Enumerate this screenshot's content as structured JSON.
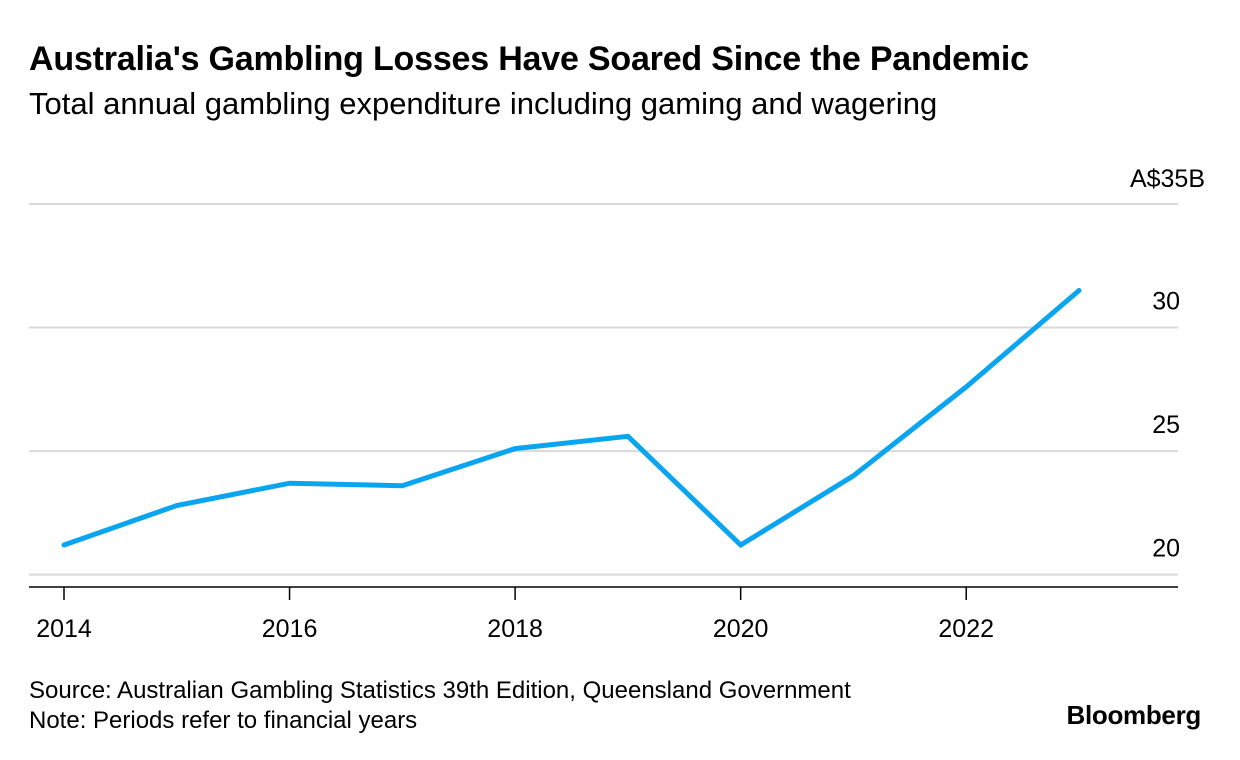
{
  "header": {
    "title": "Australia's Gambling Losses Have Soared Since the Pandemic",
    "subtitle": "Total annual gambling expenditure including gaming and wagering"
  },
  "footer": {
    "source": "Source: Australian Gambling Statistics 39th Edition, Queensland Government",
    "note": "Note: Periods refer to financial years"
  },
  "brand": "Bloomberg",
  "colors": {
    "line": "#0aa5f0",
    "grid": "#d9d9d9",
    "axis": "#000000"
  },
  "chart_data": {
    "type": "line",
    "title": "Australia's Gambling Losses Have Soared Since the Pandemic",
    "subtitle": "Total annual gambling expenditure including gaming and wagering",
    "x": [
      2014,
      2015,
      2016,
      2017,
      2018,
      2019,
      2020,
      2021,
      2022,
      2023
    ],
    "series": [
      {
        "values": [
          21.2,
          22.8,
          23.7,
          23.6,
          25.1,
          25.6,
          21.2,
          24.0,
          27.6,
          31.5
        ]
      }
    ],
    "xlim": [
      2013.7,
      2024.0
    ],
    "ylim": [
      19.5,
      35
    ],
    "yticks": [
      20,
      25,
      30,
      35
    ],
    "ytick_labels": [
      "20",
      "25",
      "30",
      "A$35B"
    ],
    "xticks": [
      2014,
      2016,
      2018,
      2020,
      2022
    ],
    "xtick_labels": [
      "2014",
      "2016",
      "2018",
      "2020",
      "2022"
    ],
    "xlabel": "",
    "ylabel": "",
    "grid": true,
    "y_axis_side": "right",
    "legend": "none"
  }
}
